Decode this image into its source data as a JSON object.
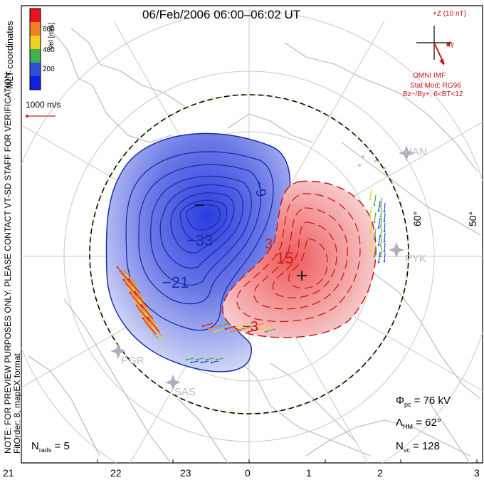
{
  "title": "06/Feb/2006 06:00–06:02 UT",
  "coord_label": "MLT coordinates",
  "colorbar": {
    "label": "Vel [m/s]",
    "ticks": [
      "600",
      "400",
      "200"
    ],
    "colors": [
      "#e8141c",
      "#f08020",
      "#f0d020",
      "#40b050",
      "#3050d0",
      "#1020e0"
    ]
  },
  "vector_scale": "1000 m/s",
  "imf": {
    "z_label": "+Z (10 nT)",
    "y_label": "+Y",
    "source": "OMNI IMF",
    "stat_mod": "Stat Mod: RG96",
    "condition": "Bz−/By+, 6<BT<12",
    "color": "#cc1111"
  },
  "side_note": {
    "line1": "NOTE: FOR PREVIEW PURPOSES ONLY. PLEASE CONTACT VT-SD STAFF FOR VERIFICATION.",
    "line2": "FitOrder: 8, mapEX format"
  },
  "latitude_labels": [
    "60°",
    "50°"
  ],
  "contour_labels": {
    "negative": [
      "−9",
      "−33",
      "−21"
    ],
    "positive": [
      "3",
      "15",
      "−3"
    ]
  },
  "radar_sites": [
    "HAN",
    "PYK",
    "PGR",
    "SAS"
  ],
  "stats": {
    "phi_pc": {
      "symbol": "Φ",
      "sub": "pc",
      "value": "= 76 kV"
    },
    "lambda_hm": {
      "symbol": "Λ",
      "sub": "HM",
      "value": "= 62°"
    },
    "n_vc": {
      "symbol": "N",
      "sub": "vc",
      "value": "= 128"
    },
    "n_rads": {
      "symbol": "N",
      "sub": "rads",
      "value": "= 5"
    }
  },
  "mlt_axis": [
    "21",
    "22",
    "23",
    "0",
    "1",
    "2",
    "3"
  ],
  "colors": {
    "negative_cell": "#2a3ee0",
    "positive_cell": "#e23030",
    "grid": "#c8c8c8",
    "coast": "#c4c4c4",
    "hm_boundary_green": "#7ac943"
  }
}
